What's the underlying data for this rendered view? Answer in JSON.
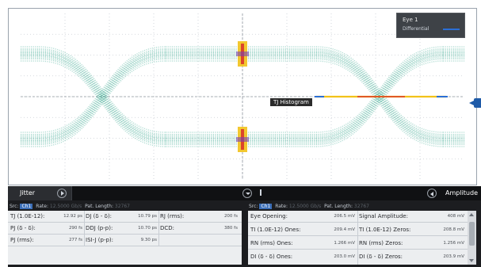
{
  "scope": {
    "title": "",
    "legend": {
      "title": "Eye 1",
      "item": "Differential",
      "color": "#2b6fd6"
    },
    "histogram_label": "TJ Histogram",
    "trace_color": "#2fa38a"
  },
  "panel": {
    "left_tab": "Jitter",
    "right_tab": "Amplitude",
    "left_info": {
      "src_label": "Src:",
      "src": "Ch1",
      "rate_label": "Rate:",
      "rate": "12.5000 Gb/s",
      "pat_label": "Pat. Length:",
      "pat": "32767"
    },
    "right_info": {
      "src_label": "Src:",
      "src": "Ch1",
      "rate_label": "Rate:",
      "rate": "12.5000 Gb/s",
      "pat_label": "Pat. Length:",
      "pat": "32767"
    },
    "jitter_rows": [
      [
        {
          "label": "TJ (1.0E-12):",
          "value": "12.92 ps"
        },
        {
          "label": "DJ (δ - δ):",
          "value": "10.79 ps"
        },
        {
          "label": "RJ (rms):",
          "value": "200 fs"
        }
      ],
      [
        {
          "label": "PJ (δ - δ):",
          "value": "290 fs"
        },
        {
          "label": "DDJ (p-p):",
          "value": "10.70 ps"
        },
        {
          "label": "DCD:",
          "value": "380 fs"
        }
      ],
      [
        {
          "label": "PJ (rms):",
          "value": "277 fs"
        },
        {
          "label": "ISI-J (p-p):",
          "value": "9.30 ps"
        }
      ]
    ],
    "amplitude_rows": [
      [
        {
          "label": "Eye Opening:",
          "value": "206.5 mV"
        },
        {
          "label": "Signal Amplitude:",
          "value": "408 mV"
        }
      ],
      [
        {
          "label": "TI (1.0E-12) Ones:",
          "value": "209.4 mV"
        },
        {
          "label": "TI (1.0E-12) Zeros:",
          "value": "208.8 mV"
        }
      ],
      [
        {
          "label": "RN (rms) Ones:",
          "value": "1.266 mV"
        },
        {
          "label": "RN (rms) Zeros:",
          "value": "1.256 mV"
        }
      ],
      [
        {
          "label": "DI (δ - δ) Ones:",
          "value": "203.0 mV"
        },
        {
          "label": "DI (δ - δ) Zeros:",
          "value": "203.9 mV"
        }
      ]
    ]
  }
}
